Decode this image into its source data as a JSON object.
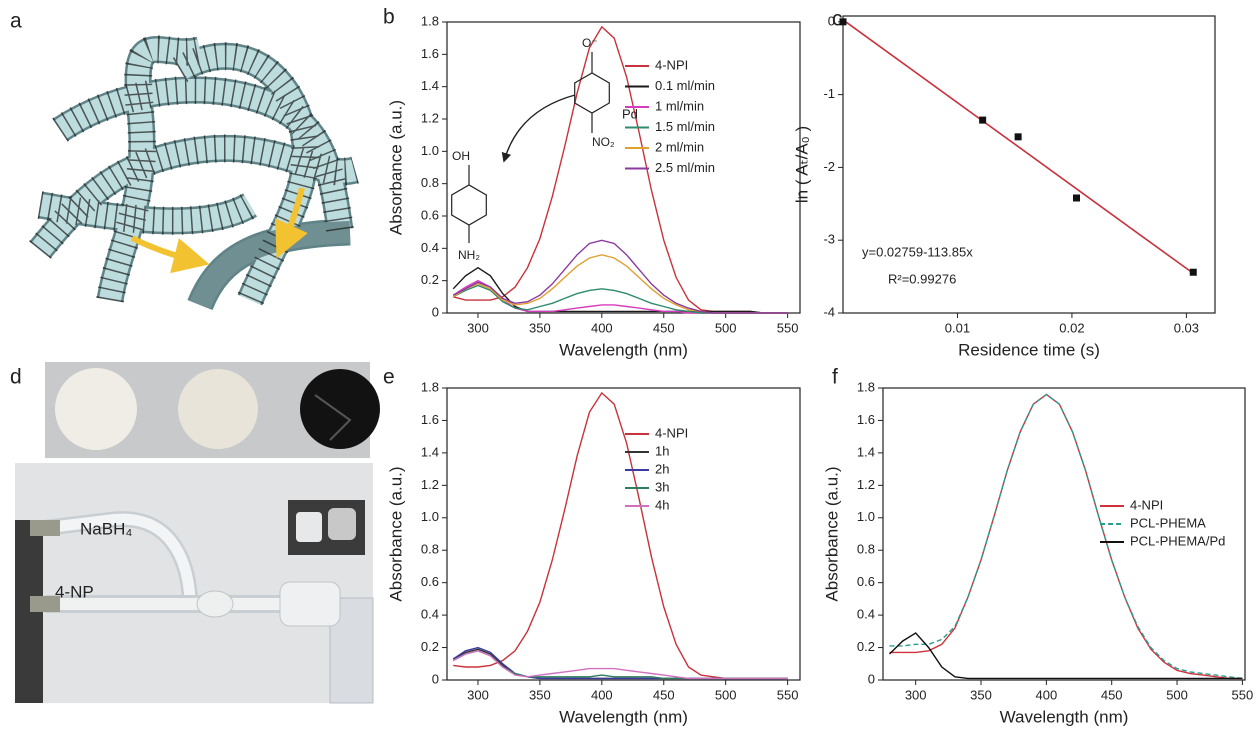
{
  "panel_labels": [
    "a",
    "b",
    "c",
    "d",
    "e",
    "f"
  ],
  "photo_labels": [
    "NaBH₄",
    "4-NP"
  ],
  "chart_data": [
    {
      "type": "line",
      "x_label": "Wavelength (nm)",
      "y_label": "Absorbance (a.u.)",
      "xlim": [
        275,
        560
      ],
      "xticks": [
        300,
        350,
        400,
        450,
        500,
        550
      ],
      "ylim": [
        0,
        1.8
      ],
      "yticks": [
        0,
        0.2,
        0.4,
        0.6,
        0.8,
        {
          "value": 1,
          "label": "1.0"
        },
        1.2,
        1.4,
        1.6,
        1.8
      ],
      "legend": "upper right",
      "annotations": [
        "Pd",
        "OH",
        "NH₂",
        "O⁻",
        "NO₂"
      ],
      "x": [
        280,
        290,
        300,
        310,
        320,
        330,
        340,
        350,
        360,
        370,
        380,
        390,
        400,
        410,
        420,
        430,
        440,
        450,
        460,
        470,
        480,
        490,
        500,
        510,
        520,
        530,
        540,
        550
      ],
      "series": [
        {
          "name": "4-NPI",
          "color": "#c8323c",
          "values": [
            0.1,
            0.08,
            0.08,
            0.08,
            0.1,
            0.16,
            0.28,
            0.46,
            0.72,
            1.03,
            1.36,
            1.64,
            1.77,
            1.7,
            1.46,
            1.12,
            0.76,
            0.45,
            0.22,
            0.08,
            0.02,
            0.01,
            0.01,
            0.01,
            0.01,
            0,
            0,
            0
          ]
        },
        {
          "name": "0.1 ml/min",
          "color": "#1a1a1a",
          "values": [
            0.15,
            0.23,
            0.28,
            0.23,
            0.12,
            0.04,
            0.01,
            0.01,
            0.01,
            0.01,
            0.01,
            0.01,
            0.01,
            0.01,
            0.01,
            0.01,
            0.01,
            0.01,
            0.01,
            0.01,
            0.01,
            0.01,
            0.01,
            0.01,
            0.01,
            0,
            0,
            0
          ]
        },
        {
          "name": "1 ml/min",
          "color": "#d63cbf",
          "values": [
            0.11,
            0.16,
            0.2,
            0.16,
            0.08,
            0.03,
            0.01,
            0.01,
            0.01,
            0.02,
            0.03,
            0.04,
            0.05,
            0.05,
            0.04,
            0.03,
            0.02,
            0.01,
            0.01,
            0,
            0,
            0,
            0,
            0,
            0,
            0,
            0,
            0
          ]
        },
        {
          "name": "1.5 ml/min",
          "color": "#2e8b6b",
          "values": [
            0.1,
            0.14,
            0.17,
            0.14,
            0.07,
            0.03,
            0.02,
            0.04,
            0.06,
            0.09,
            0.12,
            0.14,
            0.15,
            0.14,
            0.12,
            0.09,
            0.06,
            0.04,
            0.02,
            0.01,
            0,
            0,
            0,
            0,
            0,
            0,
            0,
            0
          ]
        },
        {
          "name": "2 ml/min",
          "color": "#e0a030",
          "values": [
            0.1,
            0.15,
            0.18,
            0.15,
            0.08,
            0.05,
            0.06,
            0.09,
            0.15,
            0.22,
            0.29,
            0.34,
            0.36,
            0.34,
            0.29,
            0.22,
            0.15,
            0.09,
            0.05,
            0.02,
            0.01,
            0,
            0,
            0,
            0,
            0,
            0,
            0
          ]
        },
        {
          "name": "2.5 ml/min",
          "color": "#8a3aa0",
          "values": [
            0.11,
            0.15,
            0.19,
            0.16,
            0.09,
            0.06,
            0.07,
            0.11,
            0.18,
            0.27,
            0.36,
            0.43,
            0.45,
            0.43,
            0.36,
            0.27,
            0.18,
            0.11,
            0.06,
            0.03,
            0.01,
            0,
            0,
            0,
            0,
            0,
            0,
            0
          ]
        }
      ]
    },
    {
      "type": "scatter",
      "x_label": "Residence time (s)",
      "y_label": "ln ( Aₜ/A₀ )",
      "xlim": [
        0,
        0.0325
      ],
      "xticks": [
        0.01,
        0.02,
        0.03
      ],
      "ylim": [
        -4,
        0.08
      ],
      "yticks": [
        0,
        -1,
        -2,
        -3,
        -4
      ],
      "annotations": [
        "y=0.02759-113.85x",
        "R²=0.99276"
      ],
      "x": [
        0,
        0.0122,
        0.0153,
        0.0204,
        0.0306
      ],
      "values": [
        0,
        -1.35,
        -1.58,
        -2.42,
        -3.44
      ],
      "color": "#111111",
      "fit": {
        "color": "#c8323c",
        "x": [
          0,
          0.0306
        ],
        "values": [
          0.02759,
          -3.45622
        ]
      }
    },
    {
      "type": "line",
      "x_label": "Wavelength (nm)",
      "y_label": "Absorbance (a.u.)",
      "xlim": [
        275,
        560
      ],
      "xticks": [
        300,
        350,
        400,
        450,
        500,
        550
      ],
      "ylim": [
        0,
        1.8
      ],
      "yticks": [
        0,
        0.2,
        0.4,
        0.6,
        0.8,
        {
          "value": 1,
          "label": "1.0"
        },
        1.2,
        1.4,
        1.6,
        1.8
      ],
      "legend": "upper right",
      "x": [
        280,
        290,
        300,
        310,
        320,
        330,
        340,
        350,
        360,
        370,
        380,
        390,
        400,
        410,
        420,
        430,
        440,
        450,
        460,
        470,
        480,
        490,
        500,
        510,
        520,
        530,
        540,
        550
      ],
      "series": [
        {
          "name": "4-NPI",
          "color": "#c8323c",
          "values": [
            0.09,
            0.08,
            0.08,
            0.09,
            0.12,
            0.18,
            0.3,
            0.48,
            0.74,
            1.05,
            1.38,
            1.65,
            1.77,
            1.7,
            1.46,
            1.12,
            0.76,
            0.45,
            0.22,
            0.08,
            0.03,
            0.02,
            0.01,
            0.01,
            0.01,
            0.01,
            0.01,
            0.01
          ]
        },
        {
          "name": "1h",
          "color": "#333333",
          "values": [
            0.13,
            0.17,
            0.19,
            0.16,
            0.09,
            0.04,
            0.02,
            0.01,
            0.01,
            0.01,
            0.01,
            0.01,
            0.01,
            0.01,
            0.01,
            0.01,
            0.01,
            0.01,
            0.01,
            0.01,
            0.01,
            0.01,
            0.01,
            0.01,
            0.01,
            0.01,
            0.01,
            0.01
          ]
        },
        {
          "name": "2h",
          "color": "#3a3aa0",
          "values": [
            0.13,
            0.18,
            0.2,
            0.17,
            0.1,
            0.04,
            0.02,
            0.01,
            0.01,
            0.01,
            0.01,
            0.01,
            0.01,
            0.01,
            0.01,
            0.01,
            0.01,
            0.01,
            0.01,
            0.01,
            0.01,
            0.01,
            0.01,
            0.01,
            0.01,
            0.01,
            0.01,
            0.01
          ]
        },
        {
          "name": "3h",
          "color": "#2e7d5b",
          "values": [
            0.12,
            0.16,
            0.18,
            0.15,
            0.08,
            0.04,
            0.02,
            0.02,
            0.02,
            0.02,
            0.02,
            0.02,
            0.03,
            0.02,
            0.02,
            0.02,
            0.02,
            0.01,
            0.01,
            0.01,
            0.01,
            0.01,
            0.01,
            0.01,
            0.01,
            0.01,
            0.01,
            0.01
          ]
        },
        {
          "name": "4h",
          "color": "#d070c0",
          "values": [
            0.12,
            0.16,
            0.18,
            0.15,
            0.08,
            0.03,
            0.02,
            0.03,
            0.04,
            0.05,
            0.06,
            0.07,
            0.07,
            0.07,
            0.06,
            0.05,
            0.04,
            0.03,
            0.02,
            0.01,
            0.01,
            0.01,
            0.01,
            0.01,
            0.01,
            0.01,
            0.01,
            0.01
          ]
        }
      ]
    },
    {
      "type": "line",
      "x_label": "Wavelength (nm)",
      "y_label": "Absorbance (a.u.)",
      "xlim": [
        275,
        552
      ],
      "xticks": [
        300,
        350,
        400,
        450,
        500,
        550
      ],
      "ylim": [
        0,
        1.8
      ],
      "yticks": [
        0,
        0.2,
        0.4,
        0.6,
        0.8,
        {
          "value": 1,
          "label": "1.0"
        },
        1.2,
        1.4,
        1.6,
        1.8
      ],
      "legend": "center right",
      "x": [
        280,
        290,
        300,
        310,
        320,
        330,
        340,
        350,
        360,
        370,
        380,
        390,
        400,
        410,
        420,
        430,
        440,
        450,
        460,
        470,
        480,
        490,
        500,
        510,
        520,
        530,
        540,
        550
      ],
      "series": [
        {
          "name": "4-NPI",
          "color": "#d0323c",
          "values": [
            0.17,
            0.17,
            0.17,
            0.18,
            0.22,
            0.32,
            0.51,
            0.74,
            1.01,
            1.29,
            1.53,
            1.7,
            1.76,
            1.7,
            1.53,
            1.29,
            1.01,
            0.74,
            0.51,
            0.32,
            0.19,
            0.11,
            0.06,
            0.04,
            0.03,
            0.02,
            0.01,
            0.01
          ]
        },
        {
          "name": "PCL-PHEMA",
          "color": "#2a9d8f",
          "dashed": true,
          "values": [
            0.21,
            0.21,
            0.22,
            0.22,
            0.25,
            0.33,
            0.51,
            0.74,
            1.01,
            1.29,
            1.53,
            1.7,
            1.76,
            1.7,
            1.53,
            1.29,
            1.01,
            0.74,
            0.51,
            0.33,
            0.2,
            0.12,
            0.07,
            0.05,
            0.04,
            0.03,
            0.02,
            0.01
          ]
        },
        {
          "name": "PCL-PHEMA/Pd",
          "color": "#111111",
          "values": [
            0.16,
            0.24,
            0.29,
            0.2,
            0.08,
            0.02,
            0.01,
            0.01,
            0.01,
            0.01,
            0.01,
            0.01,
            0.01,
            0.01,
            0.01,
            0.01,
            0.01,
            0.01,
            0.01,
            0.01,
            0.01,
            0.01,
            0.01,
            0.01,
            0.01,
            0.01,
            0.01,
            0.01
          ]
        }
      ]
    }
  ]
}
